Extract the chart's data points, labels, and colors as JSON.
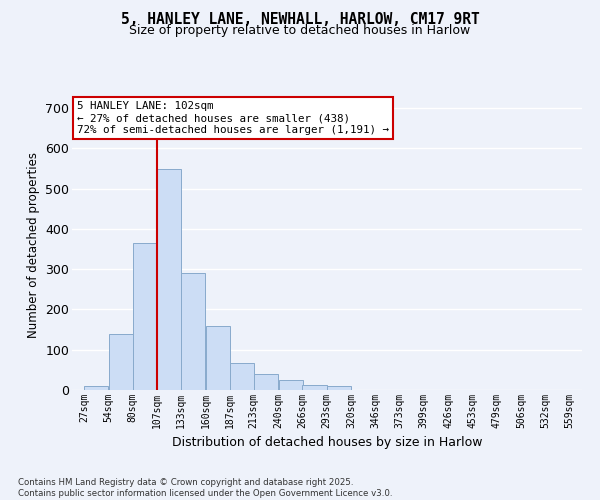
{
  "title": "5, HANLEY LANE, NEWHALL, HARLOW, CM17 9RT",
  "subtitle": "Size of property relative to detached houses in Harlow",
  "xlabel": "Distribution of detached houses by size in Harlow",
  "ylabel": "Number of detached properties",
  "bar_color": "#ccddf5",
  "bar_edge_color": "#88aacc",
  "background_color": "#eef2fa",
  "grid_color": "#ffffff",
  "annotation_box_color": "#ffffff",
  "annotation_box_edge": "#cc0000",
  "marker_line_color": "#cc0000",
  "annotation_line1": "5 HANLEY LANE: 102sqm",
  "annotation_line2": "← 27% of detached houses are smaller (438)",
  "annotation_line3": "72% of semi-detached houses are larger (1,191) →",
  "footer_line1": "Contains HM Land Registry data © Crown copyright and database right 2025.",
  "footer_line2": "Contains public sector information licensed under the Open Government Licence v3.0.",
  "bins": [
    27,
    54,
    80,
    107,
    133,
    160,
    187,
    213,
    240,
    266,
    293,
    320,
    346,
    373,
    399,
    426,
    453,
    479,
    506,
    532,
    559
  ],
  "counts": [
    9,
    138,
    365,
    549,
    291,
    158,
    66,
    40,
    24,
    13,
    9,
    0,
    0,
    0,
    0,
    0,
    0,
    0,
    0,
    0
  ],
  "ylim": [
    0,
    720
  ],
  "yticks": [
    0,
    100,
    200,
    300,
    400,
    500,
    600,
    700
  ],
  "marker_bin_index": 3
}
